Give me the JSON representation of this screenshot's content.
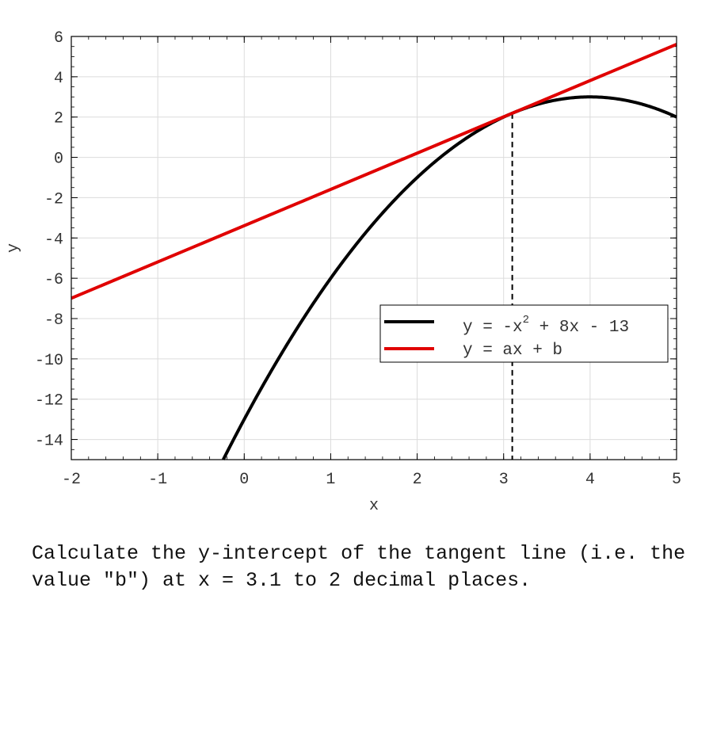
{
  "chart_data": {
    "type": "line",
    "xlabel": "x",
    "ylabel": "y",
    "xlim": [
      -2,
      5
    ],
    "ylim": [
      -15,
      6
    ],
    "xticks": [
      -2,
      -1,
      0,
      1,
      2,
      3,
      4,
      5
    ],
    "yticks": [
      -14,
      -12,
      -10,
      -8,
      -6,
      -4,
      -2,
      0,
      2,
      4,
      6
    ],
    "grid": true,
    "legend_position": "lower-right",
    "series": [
      {
        "name": "y = -x^2 + 8x - 13",
        "legend_main": "y = -x",
        "legend_sup": "2",
        "legend_rest": " + 8x - 13",
        "kind": "curve",
        "coefficients": {
          "a2": -1,
          "a1": 8,
          "a0": -13
        },
        "color": "#000000"
      },
      {
        "name": "y = ax + b",
        "legend_main": "y = ax + b",
        "kind": "line",
        "slope": 1.8,
        "intercept": -3.39,
        "color": "#e00000"
      }
    ],
    "reference_line": {
      "x": 3.1,
      "style": "dashed",
      "color": "#000000"
    }
  },
  "question": "Calculate the y-intercept of the tangent line (i.e. the value \"b\") at x = 3.1 to 2 decimal places."
}
